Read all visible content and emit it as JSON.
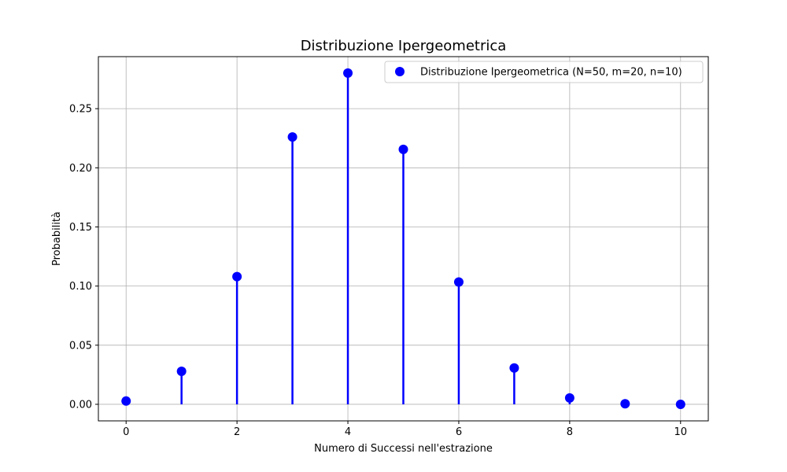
{
  "chart_data": {
    "type": "scatter",
    "title": "Distribuzione Ipergeometrica",
    "xlabel": "Numero di Successi nell'estrazione",
    "ylabel": "Probabilità",
    "xlim": [
      -0.5,
      10.5
    ],
    "ylim": [
      -0.014,
      0.294
    ],
    "x_ticks": [
      0,
      2,
      4,
      6,
      8,
      10
    ],
    "x_tick_labels": [
      "0",
      "2",
      "4",
      "6",
      "8",
      "10"
    ],
    "y_ticks": [
      0.0,
      0.05,
      0.1,
      0.15,
      0.2,
      0.25
    ],
    "y_tick_labels": [
      "0.00",
      "0.05",
      "0.10",
      "0.15",
      "0.20",
      "0.25"
    ],
    "grid": true,
    "legend_position": "top-right",
    "series": [
      {
        "name": "Distribuzione Ipergeometrica (N=50, m=20, n=10)",
        "color": "#0000ff",
        "marker": "circle",
        "stems": true,
        "x": [
          0,
          1,
          2,
          3,
          4,
          5,
          6,
          7,
          8,
          9,
          10
        ],
        "y": [
          0.0028,
          0.0279,
          0.108,
          0.2261,
          0.2801,
          0.2156,
          0.1034,
          0.0307,
          0.0054,
          0.0005,
          0.0
        ]
      }
    ]
  }
}
